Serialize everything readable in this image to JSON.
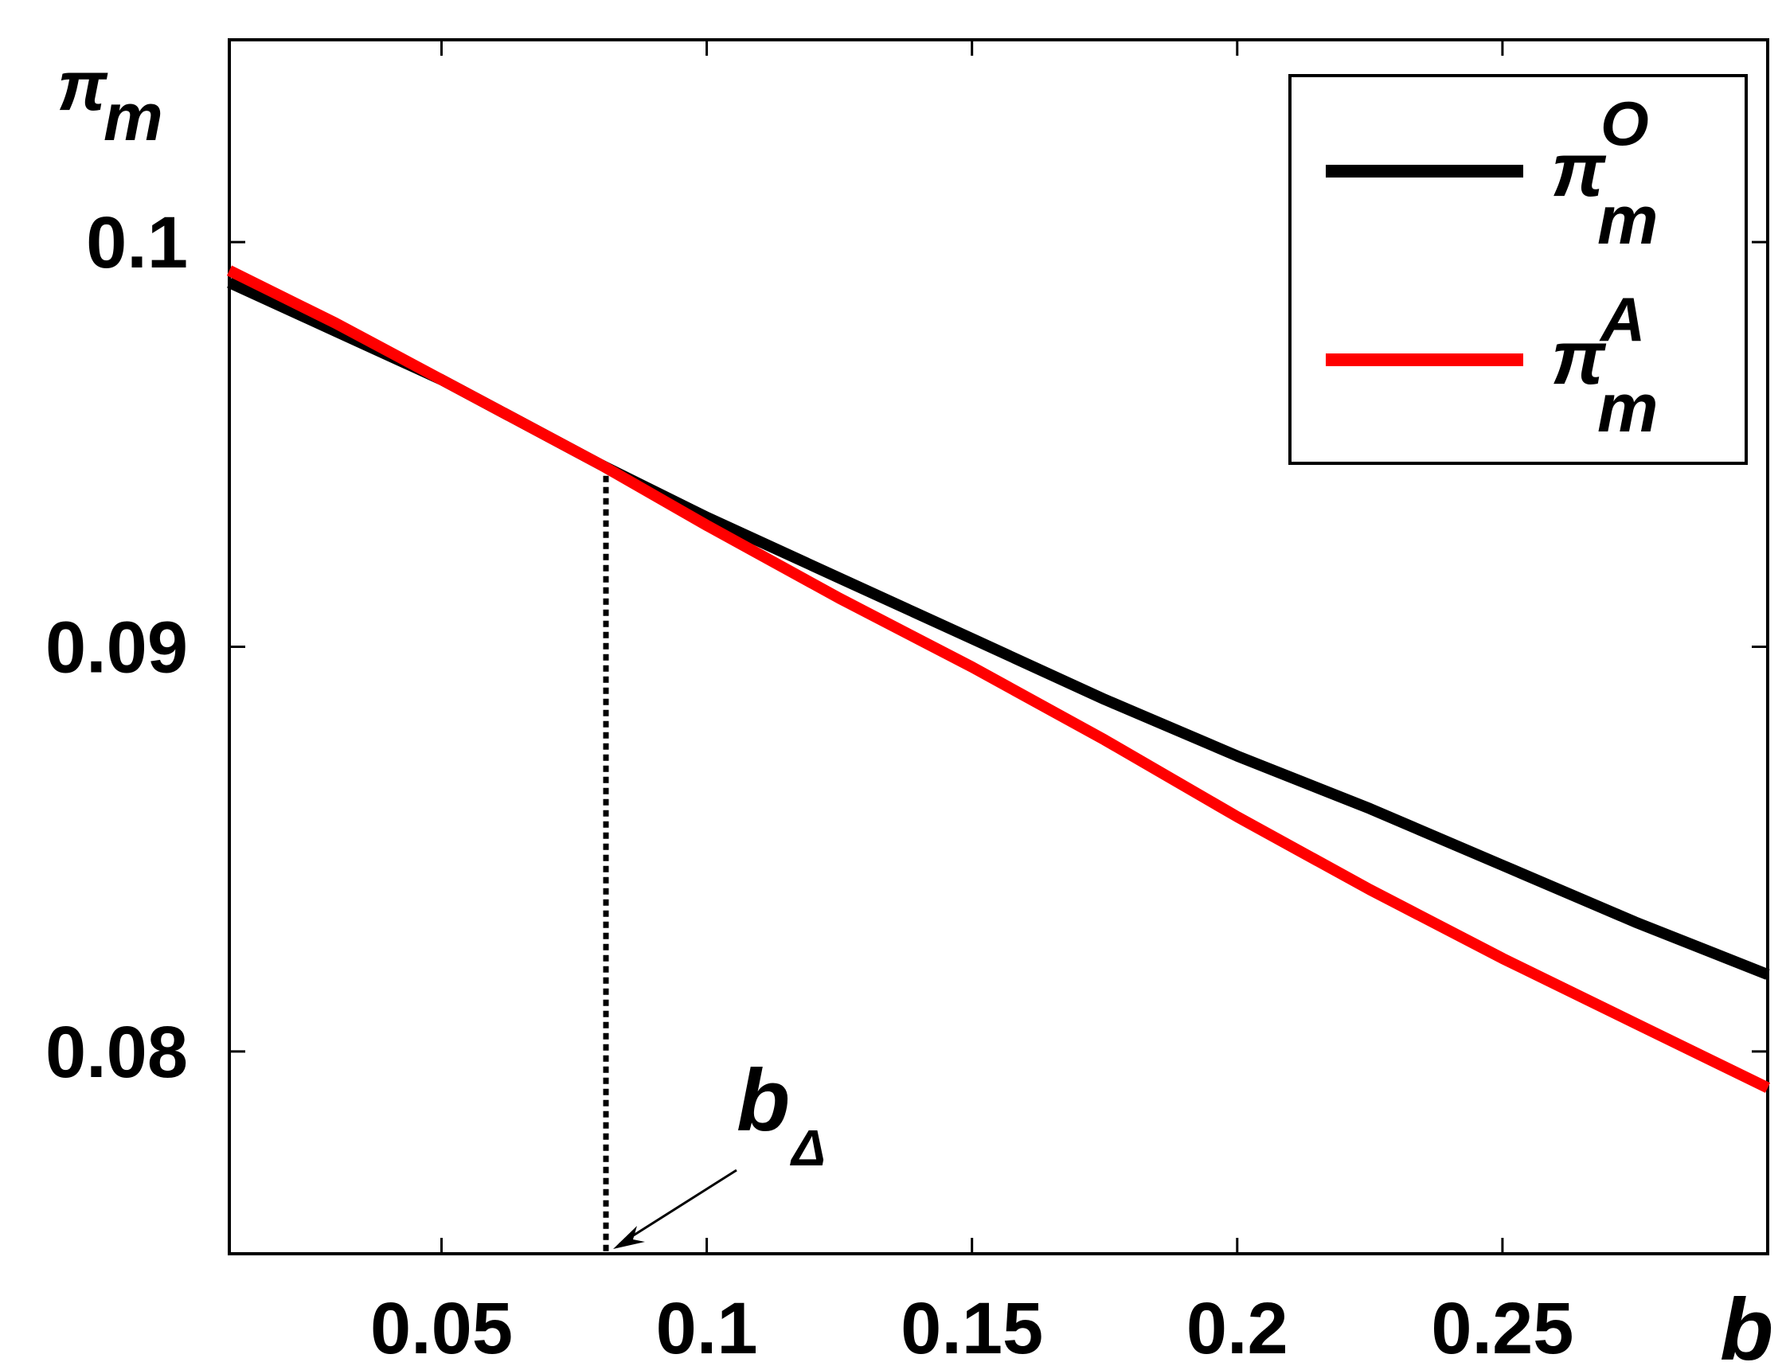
{
  "chart_data": {
    "type": "line",
    "xlabel": "b",
    "ylabel": {
      "base": "π",
      "sub": "m"
    },
    "xlim": [
      0.01,
      0.3
    ],
    "ylim": [
      0.075,
      0.105
    ],
    "xticks": [
      0.05,
      0.1,
      0.15,
      0.2,
      0.25
    ],
    "xtick_labels": [
      "0.05",
      "0.1",
      "0.15",
      "0.2",
      "0.25"
    ],
    "yticks": [
      0.08,
      0.09,
      0.1
    ],
    "ytick_labels": [
      "0.08",
      "0.09",
      "0.1"
    ],
    "grid": false,
    "legend_position": "top-right",
    "series": [
      {
        "name": "π_m^O",
        "legend": {
          "base": "π",
          "sub": "m",
          "sup": "O"
        },
        "color": "#000000",
        "x": [
          0.01,
          0.03,
          0.05,
          0.08,
          0.1,
          0.125,
          0.15,
          0.175,
          0.2,
          0.225,
          0.25,
          0.275,
          0.3
        ],
        "y": [
          0.099,
          0.0978,
          0.0966,
          0.0945,
          0.0932,
          0.0917,
          0.0902,
          0.0887,
          0.0873,
          0.086,
          0.0846,
          0.0832,
          0.0819
        ]
      },
      {
        "name": "π_m^A",
        "legend": {
          "base": "π",
          "sub": "m",
          "sup": "A"
        },
        "color": "#ff0000",
        "x": [
          0.01,
          0.03,
          0.05,
          0.08,
          0.1,
          0.125,
          0.15,
          0.175,
          0.2,
          0.225,
          0.25,
          0.275,
          0.3
        ],
        "y": [
          0.0993,
          0.098,
          0.0966,
          0.0945,
          0.093,
          0.0912,
          0.0895,
          0.0877,
          0.0858,
          0.084,
          0.0823,
          0.0807,
          0.0791
        ]
      }
    ],
    "annotation": {
      "base": "b",
      "sub": "Δ",
      "x": 0.081,
      "y": 0.0945
    }
  }
}
